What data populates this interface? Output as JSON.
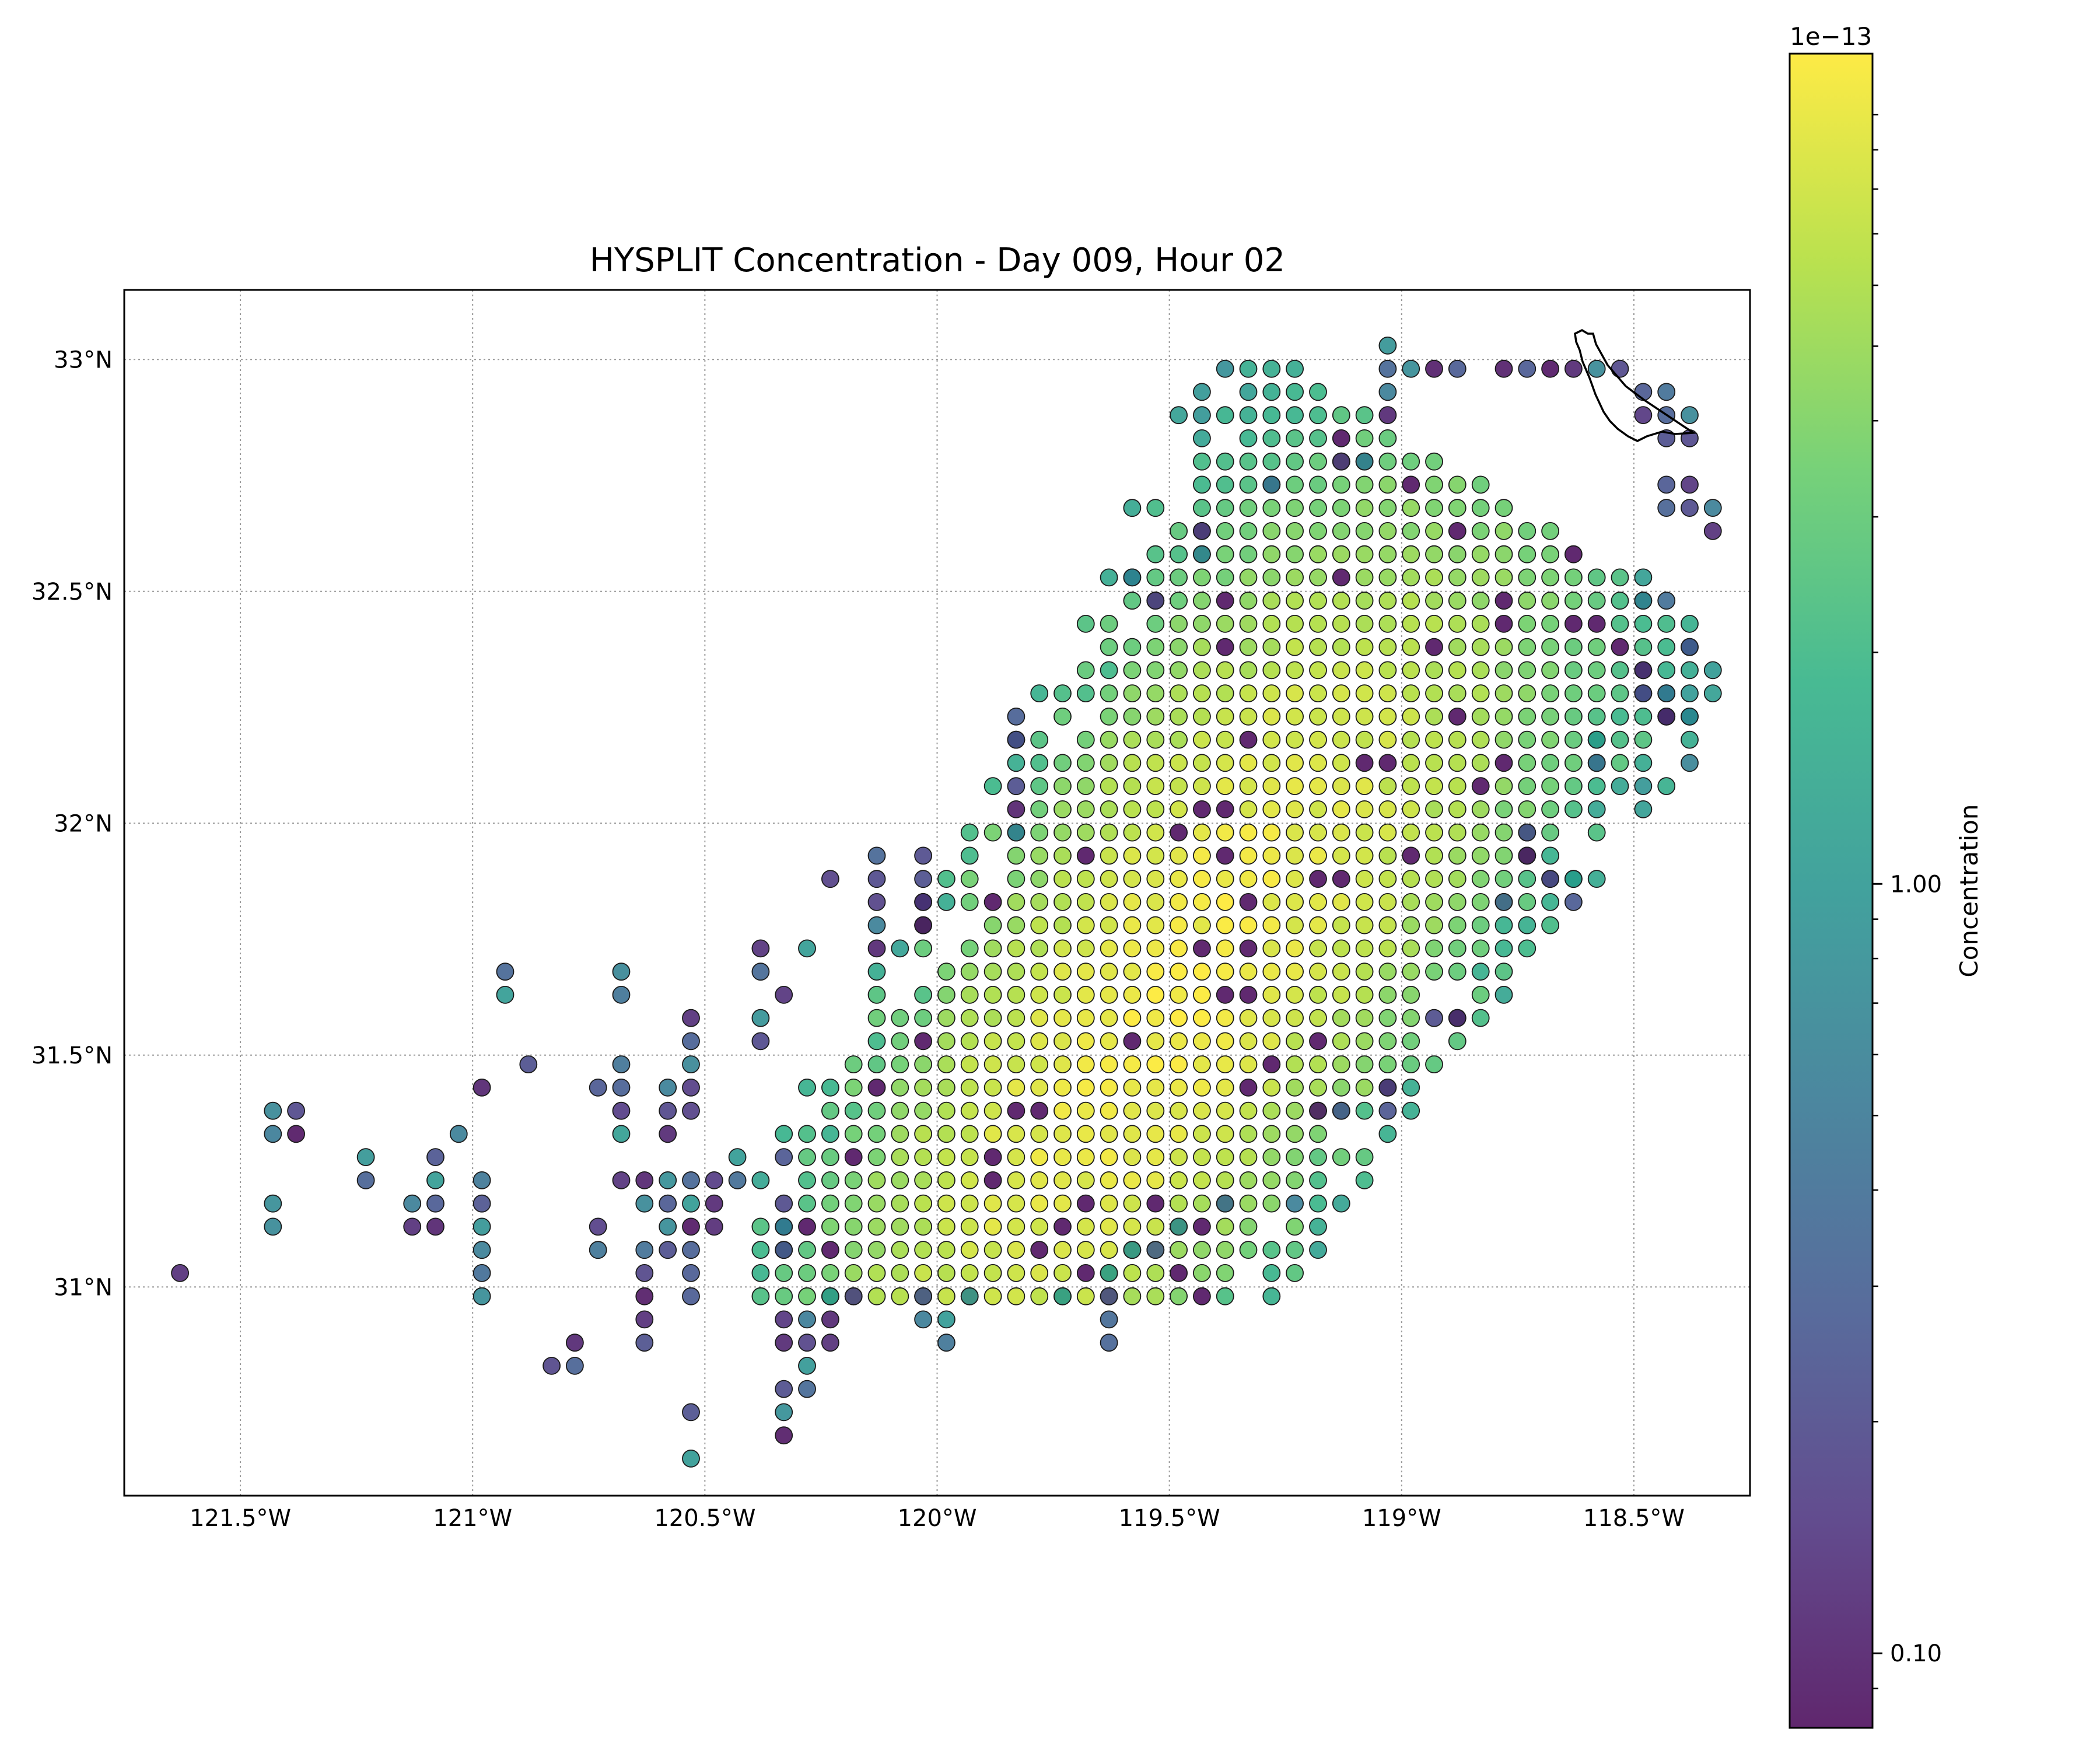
{
  "chart_data": {
    "type": "scatter",
    "title": "HYSPLIT Concentration - Day 009, Hour 02",
    "xlim": [
      -121.75,
      -118.25
    ],
    "ylim": [
      30.55,
      33.15
    ],
    "x_ticks": [
      {
        "value": -121.5,
        "label": "121.5°W"
      },
      {
        "value": -121.0,
        "label": "121°W"
      },
      {
        "value": -120.5,
        "label": "120.5°W"
      },
      {
        "value": -120.0,
        "label": "120°W"
      },
      {
        "value": -119.5,
        "label": "119.5°W"
      },
      {
        "value": -119.0,
        "label": "119°W"
      },
      {
        "value": -118.5,
        "label": "118.5°W"
      }
    ],
    "y_ticks": [
      {
        "value": 31.0,
        "label": "31°N"
      },
      {
        "value": 31.5,
        "label": "31.5°N"
      },
      {
        "value": 32.0,
        "label": "32°N"
      },
      {
        "value": 32.5,
        "label": "32.5°N"
      },
      {
        "value": 33.0,
        "label": "33°N"
      }
    ],
    "grid": true,
    "colormap": "viridis",
    "colorbar": {
      "label": "Concentration",
      "scale": "log",
      "offset_text": "1e−13",
      "range": [
        0.08,
        12.0
      ],
      "ticks": [
        {
          "value": 0.1,
          "label": "0.10"
        },
        {
          "value": 1.0,
          "label": "1.00"
        }
      ]
    },
    "plume": {
      "center_line": [
        [
          -120.35,
          31.22
        ],
        [
          -119.5,
          31.62
        ],
        [
          -118.8,
          32.72
        ]
      ],
      "center_max": 11.0,
      "across_halfwidth": 0.52,
      "along_range": [
        -1.55,
        1.3
      ],
      "tail_points": [
        [
          -121.63,
          31.03
        ],
        [
          -121.43,
          31.38
        ],
        [
          -121.38,
          31.38
        ],
        [
          -121.43,
          31.33
        ],
        [
          -121.38,
          31.33
        ],
        [
          -121.43,
          31.18
        ],
        [
          -121.43,
          31.13
        ],
        [
          -121.23,
          31.28
        ],
        [
          -121.23,
          31.23
        ],
        [
          -121.13,
          31.18
        ],
        [
          -121.13,
          31.13
        ],
        [
          -121.08,
          31.28
        ],
        [
          -121.08,
          31.23
        ],
        [
          -121.08,
          31.18
        ],
        [
          -121.08,
          31.13
        ],
        [
          -121.03,
          31.33
        ],
        [
          -120.98,
          31.43
        ],
        [
          -120.98,
          31.23
        ],
        [
          -120.98,
          31.18
        ],
        [
          -120.98,
          31.13
        ],
        [
          -120.98,
          31.08
        ],
        [
          -120.98,
          31.03
        ],
        [
          -120.98,
          30.98
        ],
        [
          -120.93,
          31.68
        ],
        [
          -120.93,
          31.63
        ],
        [
          -120.88,
          31.48
        ],
        [
          -120.83,
          30.83
        ],
        [
          -120.78,
          30.88
        ],
        [
          -120.78,
          30.83
        ],
        [
          -120.73,
          31.43
        ],
        [
          -120.73,
          31.13
        ],
        [
          -120.73,
          31.08
        ],
        [
          -120.68,
          31.68
        ],
        [
          -120.68,
          31.63
        ],
        [
          -120.68,
          31.48
        ],
        [
          -120.68,
          31.43
        ],
        [
          -120.68,
          31.38
        ],
        [
          -120.68,
          31.33
        ],
        [
          -120.68,
          31.23
        ],
        [
          -120.63,
          31.23
        ],
        [
          -120.63,
          31.18
        ],
        [
          -120.63,
          31.08
        ],
        [
          -120.63,
          31.03
        ],
        [
          -120.63,
          30.98
        ],
        [
          -120.63,
          30.93
        ],
        [
          -120.63,
          30.88
        ],
        [
          -120.58,
          31.43
        ],
        [
          -120.58,
          31.38
        ],
        [
          -120.58,
          31.33
        ],
        [
          -120.58,
          31.23
        ],
        [
          -120.58,
          31.18
        ],
        [
          -120.58,
          31.13
        ],
        [
          -120.58,
          31.08
        ],
        [
          -120.53,
          31.58
        ],
        [
          -120.53,
          31.53
        ],
        [
          -120.53,
          31.48
        ],
        [
          -120.53,
          31.43
        ],
        [
          -120.53,
          31.38
        ],
        [
          -120.53,
          31.23
        ],
        [
          -120.53,
          31.18
        ],
        [
          -120.53,
          31.13
        ],
        [
          -120.53,
          31.08
        ],
        [
          -120.53,
          31.03
        ],
        [
          -120.53,
          30.98
        ],
        [
          -120.53,
          30.73
        ],
        [
          -120.53,
          30.63
        ],
        [
          -120.48,
          31.23
        ],
        [
          -120.48,
          31.18
        ],
        [
          -120.48,
          31.13
        ],
        [
          -120.43,
          31.28
        ],
        [
          -120.43,
          31.23
        ],
        [
          -120.38,
          31.73
        ],
        [
          -120.38,
          31.68
        ],
        [
          -120.38,
          31.58
        ],
        [
          -120.38,
          31.53
        ],
        [
          -120.33,
          31.63
        ],
        [
          -120.33,
          31.28
        ],
        [
          -120.33,
          31.18
        ],
        [
          -120.33,
          31.13
        ],
        [
          -120.33,
          31.08
        ],
        [
          -120.33,
          30.93
        ],
        [
          -120.33,
          30.88
        ],
        [
          -120.33,
          30.78
        ],
        [
          -120.33,
          30.73
        ],
        [
          -120.33,
          30.68
        ],
        [
          -120.28,
          31.73
        ],
        [
          -120.28,
          30.93
        ],
        [
          -120.28,
          30.88
        ],
        [
          -120.28,
          30.83
        ],
        [
          -120.28,
          30.78
        ],
        [
          -120.23,
          31.88
        ],
        [
          -120.23,
          30.98
        ],
        [
          -120.23,
          30.93
        ],
        [
          -120.23,
          30.88
        ],
        [
          -120.18,
          30.98
        ],
        [
          -120.13,
          31.93
        ],
        [
          -120.13,
          31.88
        ],
        [
          -120.13,
          31.83
        ],
        [
          -120.13,
          31.78
        ],
        [
          -120.13,
          31.73
        ],
        [
          -120.03,
          31.93
        ],
        [
          -120.03,
          31.88
        ],
        [
          -120.03,
          31.83
        ],
        [
          -120.03,
          31.78
        ],
        [
          -120.03,
          30.98
        ],
        [
          -120.03,
          30.93
        ],
        [
          -119.98,
          30.93
        ],
        [
          -119.98,
          30.88
        ],
        [
          -119.93,
          30.98
        ],
        [
          -119.73,
          30.98
        ],
        [
          -119.63,
          31.03
        ],
        [
          -119.63,
          30.98
        ],
        [
          -119.63,
          30.93
        ],
        [
          -119.63,
          30.88
        ],
        [
          -119.83,
          32.23
        ],
        [
          -119.83,
          32.18
        ],
        [
          -119.83,
          32.08
        ],
        [
          -119.83,
          32.03
        ],
        [
          -119.83,
          31.98
        ],
        [
          -119.58,
          32.53
        ],
        [
          -119.53,
          32.48
        ],
        [
          -119.43,
          32.63
        ],
        [
          -119.43,
          32.58
        ],
        [
          -119.28,
          32.73
        ],
        [
          -119.13,
          32.78
        ],
        [
          -119.08,
          32.78
        ],
        [
          -119.03,
          33.03
        ],
        [
          -119.03,
          32.98
        ],
        [
          -119.03,
          32.93
        ],
        [
          -119.03,
          32.88
        ],
        [
          -118.98,
          32.98
        ],
        [
          -118.93,
          32.98
        ],
        [
          -118.88,
          32.98
        ],
        [
          -118.78,
          32.98
        ],
        [
          -118.73,
          32.98
        ],
        [
          -118.68,
          32.98
        ],
        [
          -118.63,
          32.98
        ],
        [
          -118.58,
          32.98
        ],
        [
          -118.53,
          32.98
        ],
        [
          -118.48,
          32.93
        ],
        [
          -118.43,
          32.93
        ],
        [
          -118.48,
          32.88
        ],
        [
          -118.43,
          32.88
        ],
        [
          -118.38,
          32.88
        ],
        [
          -118.43,
          32.83
        ],
        [
          -118.38,
          32.83
        ],
        [
          -118.43,
          32.73
        ],
        [
          -118.38,
          32.73
        ],
        [
          -118.43,
          32.68
        ],
        [
          -118.38,
          32.68
        ],
        [
          -118.33,
          32.68
        ],
        [
          -118.33,
          32.63
        ],
        [
          -118.48,
          32.53
        ],
        [
          -118.48,
          32.48
        ],
        [
          -118.43,
          32.48
        ],
        [
          -118.38,
          32.38
        ],
        [
          -118.48,
          32.33
        ],
        [
          -118.48,
          32.28
        ],
        [
          -118.43,
          32.28
        ],
        [
          -118.43,
          32.23
        ],
        [
          -118.38,
          32.23
        ],
        [
          -118.58,
          32.18
        ],
        [
          -118.58,
          32.13
        ],
        [
          -118.63,
          31.88
        ],
        [
          -118.63,
          31.83
        ],
        [
          -118.68,
          31.88
        ],
        [
          -118.73,
          31.98
        ],
        [
          -118.73,
          31.93
        ],
        [
          -118.78,
          31.83
        ],
        [
          -118.93,
          31.58
        ],
        [
          -118.88,
          31.58
        ],
        [
          -119.03,
          31.43
        ],
        [
          -119.03,
          31.38
        ],
        [
          -119.13,
          31.38
        ],
        [
          -119.18,
          31.38
        ],
        [
          -119.23,
          31.18
        ],
        [
          -119.38,
          31.18
        ],
        [
          -119.48,
          31.13
        ],
        [
          -119.53,
          31.08
        ],
        [
          -119.58,
          31.08
        ]
      ]
    }
  }
}
